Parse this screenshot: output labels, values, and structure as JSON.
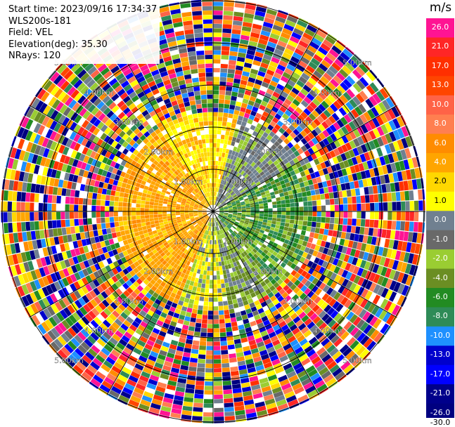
{
  "header": {
    "start_time": "Start time: 2023/09/16 17:34:37",
    "instrument": "WLS200s-181",
    "field": "Field: VEL",
    "elevation": "Elevation(deg): 35.30",
    "nrays": "NRays: 120"
  },
  "colorbar": {
    "unit": "m/s",
    "levels": [
      "26.0",
      "21.0",
      "17.0",
      "13.0",
      "10.0",
      "8.0",
      "6.0",
      "4.0",
      "2.0",
      "1.0",
      "0.0",
      "-1.0",
      "-2.0",
      "-4.0",
      "-6.0",
      "-8.0",
      "-10.0",
      "-13.0",
      "-17.0",
      "-21.0",
      "-26.0",
      "-30.0"
    ],
    "colors": [
      "#ff1493",
      "#ff2626",
      "#ff2f00",
      "#ff4500",
      "#ff6347",
      "#ff7f50",
      "#ff8c00",
      "#ffa500",
      "#ffd700",
      "#ffff00",
      "#708090",
      "#696969",
      "#9acd32",
      "#6b8e23",
      "#228b22",
      "#2e8b57",
      "#1e90ff",
      "#0000cd",
      "#0000ff",
      "#00008b",
      "#000080"
    ]
  },
  "chart_data": {
    "type": "ppi",
    "field": "VEL",
    "units": "m/s",
    "n_rays": 120,
    "range_ring_labels": [
      "1.00km",
      "2.00km",
      "3.00km",
      "4.00km",
      "5.00km"
    ],
    "near_field": "Multiple sectors of radial velocity with receding (orange/yellow) winds toward the west and approaching (green/gray) winds toward the east/south within ~2 km; beyond ~2.5 km the field is noisy (random colors).",
    "grid": true
  }
}
